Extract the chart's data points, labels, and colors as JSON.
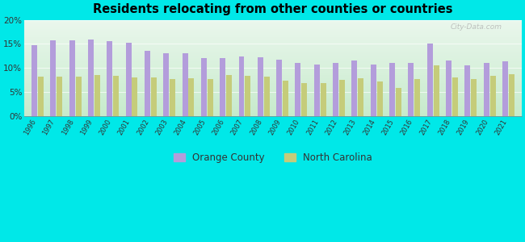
{
  "title": "Residents relocating from other counties or countries",
  "years": [
    "1996",
    "1997",
    "1998",
    "1999",
    "2000",
    "2001",
    "2002",
    "2003",
    "2004",
    "2005",
    "2006",
    "2007",
    "2008",
    "2009",
    "2010",
    "2011",
    "2012",
    "2013",
    "2014",
    "2015",
    "2016",
    "2017",
    "2018",
    "2019",
    "2020",
    "2021"
  ],
  "orange_county": [
    14.8,
    15.8,
    15.7,
    15.9,
    15.5,
    15.2,
    13.5,
    13.0,
    13.0,
    12.0,
    12.0,
    12.3,
    12.2,
    11.7,
    11.0,
    10.7,
    11.1,
    11.5,
    10.7,
    11.0,
    11.0,
    15.0,
    11.5,
    10.5,
    11.0,
    11.3
  ],
  "north_carolina": [
    8.2,
    8.2,
    8.2,
    8.5,
    8.3,
    8.0,
    8.0,
    7.7,
    7.8,
    7.7,
    8.5,
    8.3,
    8.2,
    7.3,
    6.8,
    6.9,
    7.5,
    7.9,
    7.2,
    5.8,
    7.7,
    10.5,
    8.0,
    7.7,
    8.4,
    8.6
  ],
  "orange_county_color": "#b39ddb",
  "north_carolina_color": "#c5cc7a",
  "background_color": "#00e8e8",
  "ylim": [
    0,
    20
  ],
  "yticks": [
    0,
    5,
    10,
    15,
    20
  ],
  "ytick_labels": [
    "0%",
    "5%",
    "10%",
    "15%",
    "20%"
  ],
  "legend_orange": "Orange County",
  "legend_nc": "North Carolina",
  "bar_width": 0.3
}
